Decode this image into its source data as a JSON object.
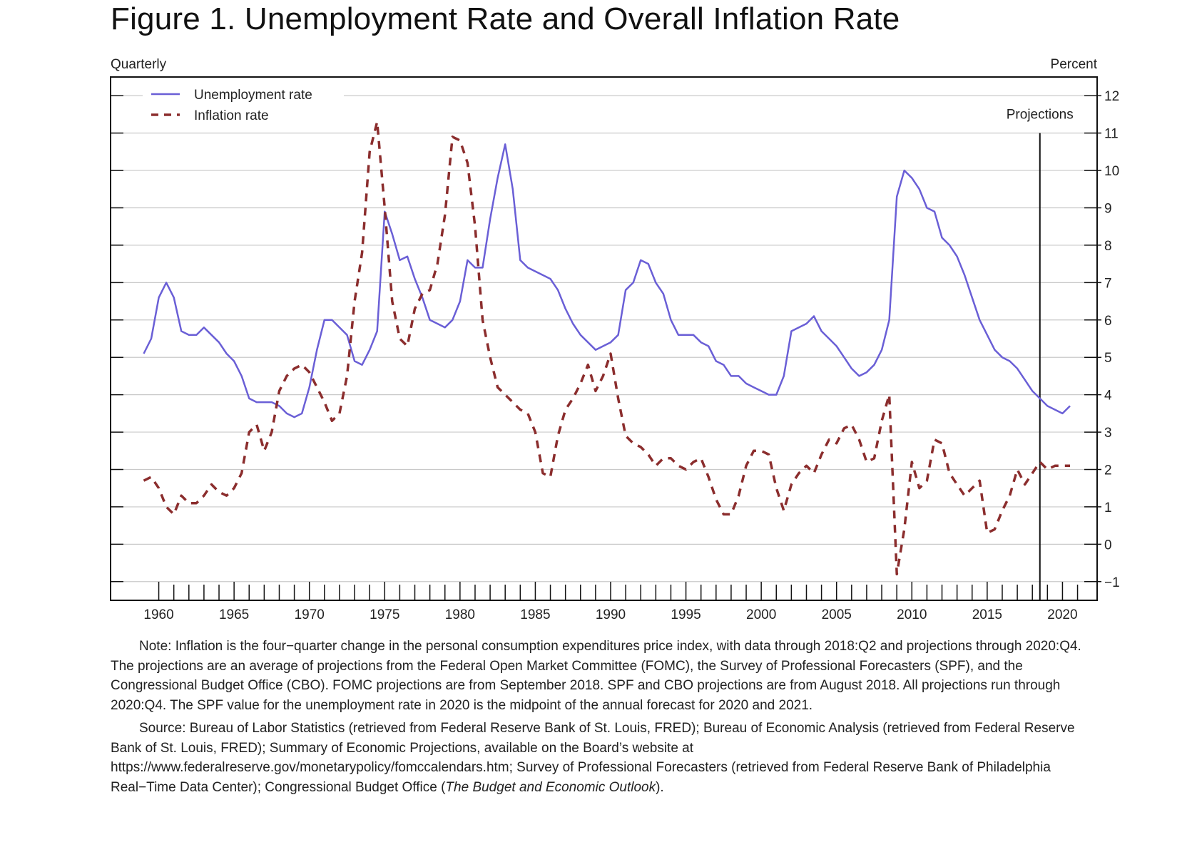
{
  "figure_title": "Figure 1.  Unemployment Rate and Overall Inflation Rate",
  "chart_data": {
    "type": "line",
    "title": "Figure 1.  Unemployment Rate and Overall Inflation Rate",
    "frequency_label": "Quarterly",
    "ylabel": "Percent",
    "xlim": [
      1956.8,
      2022.3
    ],
    "ylim": [
      -1.5,
      12.5
    ],
    "y_ticks": [
      12,
      11,
      10,
      9,
      8,
      7,
      6,
      5,
      4,
      3,
      2,
      1,
      0,
      -1
    ],
    "y_tick_labels": [
      "12",
      "11",
      "10",
      "9",
      "8",
      "7",
      "6",
      "5",
      "4",
      "3",
      "2",
      "1",
      "0",
      "−1"
    ],
    "x_ticks": [
      1960,
      1965,
      1970,
      1975,
      1980,
      1985,
      1990,
      1995,
      2000,
      2005,
      2010,
      2015,
      2020
    ],
    "x_tick_labels": [
      "1960",
      "1965",
      "1970",
      "1975",
      "1980",
      "1985",
      "1990",
      "1995",
      "2000",
      "2005",
      "2010",
      "2015",
      "2020"
    ],
    "grid": true,
    "legend_position": "top-left",
    "annotation": {
      "text": "Projections",
      "x": 2018.5
    },
    "series": [
      {
        "name": "Unemployment rate",
        "color": "#6a5fd6",
        "style": "solid",
        "x": [
          1959.0,
          1959.5,
          1960.0,
          1960.5,
          1961.0,
          1961.5,
          1962.0,
          1962.5,
          1963.0,
          1963.5,
          1964.0,
          1964.5,
          1965.0,
          1965.5,
          1966.0,
          1966.5,
          1967.0,
          1967.5,
          1968.0,
          1968.5,
          1969.0,
          1969.5,
          1970.0,
          1970.5,
          1971.0,
          1971.5,
          1972.0,
          1972.5,
          1973.0,
          1973.5,
          1974.0,
          1974.5,
          1975.0,
          1975.5,
          1976.0,
          1976.5,
          1977.0,
          1977.5,
          1978.0,
          1978.5,
          1979.0,
          1979.5,
          1980.0,
          1980.5,
          1981.0,
          1981.5,
          1982.0,
          1982.5,
          1983.0,
          1983.5,
          1984.0,
          1984.5,
          1985.0,
          1985.5,
          1986.0,
          1986.5,
          1987.0,
          1987.5,
          1988.0,
          1988.5,
          1989.0,
          1989.5,
          1990.0,
          1990.5,
          1991.0,
          1991.5,
          1992.0,
          1992.5,
          1993.0,
          1993.5,
          1994.0,
          1994.5,
          1995.0,
          1995.5,
          1996.0,
          1996.5,
          1997.0,
          1997.5,
          1998.0,
          1998.5,
          1999.0,
          1999.5,
          2000.0,
          2000.5,
          2001.0,
          2001.5,
          2002.0,
          2002.5,
          2003.0,
          2003.5,
          2004.0,
          2004.5,
          2005.0,
          2005.5,
          2006.0,
          2006.5,
          2007.0,
          2007.5,
          2008.0,
          2008.5,
          2009.0,
          2009.5,
          2010.0,
          2010.5,
          2011.0,
          2011.5,
          2012.0,
          2012.5,
          2013.0,
          2013.5,
          2014.0,
          2014.5,
          2015.0,
          2015.5,
          2016.0,
          2016.5,
          2017.0,
          2017.5,
          2018.0,
          2018.5,
          2019.0,
          2019.5,
          2020.0,
          2020.5
        ],
        "values": [
          5.1,
          5.5,
          6.6,
          7.0,
          6.6,
          5.7,
          5.6,
          5.6,
          5.8,
          5.6,
          5.4,
          5.1,
          4.9,
          4.5,
          3.9,
          3.8,
          3.8,
          3.8,
          3.7,
          3.5,
          3.4,
          3.5,
          4.2,
          5.2,
          6.0,
          6.0,
          5.8,
          5.6,
          4.9,
          4.8,
          5.2,
          5.7,
          8.9,
          8.3,
          7.6,
          7.7,
          7.1,
          6.6,
          6.0,
          5.9,
          5.8,
          6.0,
          6.5,
          7.6,
          7.4,
          7.4,
          8.7,
          9.8,
          10.7,
          9.5,
          7.6,
          7.4,
          7.3,
          7.2,
          7.1,
          6.8,
          6.3,
          5.9,
          5.6,
          5.4,
          5.2,
          5.3,
          5.4,
          5.6,
          6.8,
          7.0,
          7.6,
          7.5,
          7.0,
          6.7,
          6.0,
          5.6,
          5.6,
          5.6,
          5.4,
          5.3,
          4.9,
          4.8,
          4.5,
          4.5,
          4.3,
          4.2,
          4.1,
          4.0,
          4.0,
          4.5,
          5.7,
          5.8,
          5.9,
          6.1,
          5.7,
          5.5,
          5.3,
          5.0,
          4.7,
          4.5,
          4.6,
          4.8,
          5.2,
          6.0,
          9.3,
          10.0,
          9.8,
          9.5,
          9.0,
          8.9,
          8.2,
          8.0,
          7.7,
          7.2,
          6.6,
          6.0,
          5.6,
          5.2,
          5.0,
          4.9,
          4.7,
          4.4,
          4.1,
          3.9,
          3.7,
          3.6,
          3.5,
          3.7
        ]
      },
      {
        "name": "Inflation rate",
        "color": "#8b2d2d",
        "style": "dashed",
        "x": [
          1959.0,
          1959.5,
          1960.0,
          1960.5,
          1961.0,
          1961.5,
          1962.0,
          1962.5,
          1963.0,
          1963.5,
          1964.0,
          1964.5,
          1965.0,
          1965.5,
          1966.0,
          1966.5,
          1967.0,
          1967.5,
          1968.0,
          1968.5,
          1969.0,
          1969.5,
          1970.0,
          1970.5,
          1971.0,
          1971.5,
          1972.0,
          1972.5,
          1973.0,
          1973.5,
          1974.0,
          1974.5,
          1975.0,
          1975.5,
          1976.0,
          1976.5,
          1977.0,
          1977.5,
          1978.0,
          1978.5,
          1979.0,
          1979.5,
          1980.0,
          1980.5,
          1981.0,
          1981.5,
          1982.0,
          1982.5,
          1983.0,
          1983.5,
          1984.0,
          1984.5,
          1985.0,
          1985.5,
          1986.0,
          1986.5,
          1987.0,
          1987.5,
          1988.0,
          1988.5,
          1989.0,
          1989.5,
          1990.0,
          1990.5,
          1991.0,
          1991.5,
          1992.0,
          1992.5,
          1993.0,
          1993.5,
          1994.0,
          1994.5,
          1995.0,
          1995.5,
          1996.0,
          1996.5,
          1997.0,
          1997.5,
          1998.0,
          1998.5,
          1999.0,
          1999.5,
          2000.0,
          2000.5,
          2001.0,
          2001.5,
          2002.0,
          2002.5,
          2003.0,
          2003.5,
          2004.0,
          2004.5,
          2005.0,
          2005.5,
          2006.0,
          2006.5,
          2007.0,
          2007.5,
          2008.0,
          2008.5,
          2009.0,
          2009.5,
          2010.0,
          2010.5,
          2011.0,
          2011.5,
          2012.0,
          2012.5,
          2013.0,
          2013.5,
          2014.0,
          2014.5,
          2015.0,
          2015.5,
          2016.0,
          2016.5,
          2017.0,
          2017.5,
          2018.0,
          2018.5,
          2019.0,
          2019.5,
          2020.0,
          2020.5
        ],
        "values": [
          1.7,
          1.8,
          1.5,
          1.0,
          0.8,
          1.3,
          1.1,
          1.1,
          1.3,
          1.6,
          1.4,
          1.3,
          1.5,
          1.9,
          3.0,
          3.2,
          2.5,
          3.0,
          4.1,
          4.5,
          4.7,
          4.8,
          4.6,
          4.2,
          3.8,
          3.3,
          3.5,
          4.5,
          6.5,
          7.8,
          10.5,
          11.3,
          9.0,
          6.5,
          5.5,
          5.3,
          6.3,
          6.7,
          6.8,
          7.5,
          8.8,
          10.9,
          10.8,
          10.2,
          8.5,
          6.0,
          5.0,
          4.2,
          4.0,
          3.8,
          3.6,
          3.5,
          3.0,
          1.9,
          1.8,
          2.9,
          3.6,
          3.9,
          4.3,
          4.8,
          4.1,
          4.5,
          5.1,
          3.9,
          2.9,
          2.7,
          2.6,
          2.4,
          2.1,
          2.3,
          2.3,
          2.1,
          2.0,
          2.2,
          2.3,
          1.8,
          1.2,
          0.8,
          0.8,
          1.3,
          2.1,
          2.5,
          2.5,
          2.4,
          1.5,
          0.9,
          1.6,
          1.9,
          2.1,
          1.9,
          2.4,
          2.8,
          2.7,
          3.1,
          3.2,
          2.8,
          2.2,
          2.3,
          3.3,
          4.0,
          -0.8,
          0.4,
          2.2,
          1.5,
          1.7,
          2.8,
          2.7,
          1.9,
          1.6,
          1.3,
          1.5,
          1.7,
          0.3,
          0.4,
          0.9,
          1.3,
          2.0,
          1.6,
          1.9,
          2.2,
          2.0,
          2.1,
          2.1,
          2.1
        ]
      }
    ]
  },
  "notes": {
    "note_label": "Note:",
    "note_text": "Inflation is the four−quarter change in the personal consumption expenditures price index, with data through 2018:Q2 and projections through 2020:Q4.  The projections are an average of projections from the Federal Open Market Committee (FOMC), the Survey of Professional Forecasters (SPF), and the Congressional Budget Office (CBO).  FOMC projections are from September 2018. SPF and CBO projections are from August 2018.  All projections run through 2020:Q4.  The SPF value for the unemployment rate in 2020 is the midpoint of the annual forecast for 2020 and 2021.",
    "source_label": "Source:",
    "source_text": "Bureau of Labor Statistics (retrieved from Federal Reserve Bank of St. Louis, FRED); Bureau of Economic Analysis (retrieved from Federal Reserve Bank of St. Louis, FRED); Summary of Economic Projections, available on the Board’s website at https://www.federalreserve.gov/monetarypolicy/fomccalendars.htm; Survey of Professional Forecasters (retrieved from Federal Reserve Bank of Philadelphia Real−Time Data Center); Congressional Budget Office (",
    "source_italic": "The Budget and Economic Outlook",
    "source_end": ")."
  }
}
